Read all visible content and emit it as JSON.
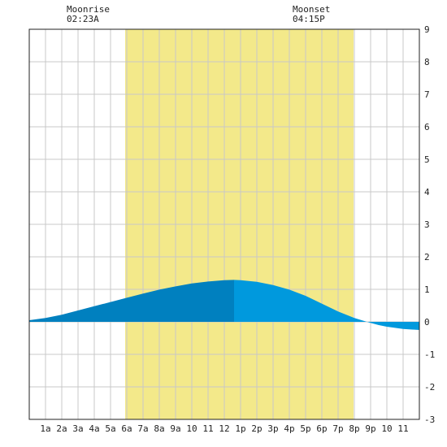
{
  "moonrise": {
    "label": "Moonrise",
    "time": "02:23A"
  },
  "moonset": {
    "label": "Moonset",
    "time": "04:15P"
  },
  "colors": {
    "daylight": "#f3e98a",
    "grid": "#c8c8c8",
    "tide_dark": "#0080bf",
    "tide_light": "#0099dd",
    "axis": "#222222"
  },
  "chart_data": {
    "type": "area",
    "x_unit": "hour of day",
    "y_unit": "ft",
    "xlim": [
      0,
      24
    ],
    "ylim": [
      -3,
      9
    ],
    "y_ticks": [
      -3,
      -2,
      -1,
      0,
      1,
      2,
      3,
      4,
      5,
      6,
      7,
      8,
      9
    ],
    "x_ticks": [
      {
        "x": 1,
        "label": "1a"
      },
      {
        "x": 2,
        "label": "2a"
      },
      {
        "x": 3,
        "label": "3a"
      },
      {
        "x": 4,
        "label": "4a"
      },
      {
        "x": 5,
        "label": "5a"
      },
      {
        "x": 6,
        "label": "6a"
      },
      {
        "x": 7,
        "label": "7a"
      },
      {
        "x": 8,
        "label": "8a"
      },
      {
        "x": 9,
        "label": "9a"
      },
      {
        "x": 10,
        "label": "10"
      },
      {
        "x": 11,
        "label": "11"
      },
      {
        "x": 12,
        "label": "12"
      },
      {
        "x": 13,
        "label": "1p"
      },
      {
        "x": 14,
        "label": "2p"
      },
      {
        "x": 15,
        "label": "3p"
      },
      {
        "x": 16,
        "label": "4p"
      },
      {
        "x": 17,
        "label": "5p"
      },
      {
        "x": 18,
        "label": "6p"
      },
      {
        "x": 19,
        "label": "7p"
      },
      {
        "x": 20,
        "label": "8p"
      },
      {
        "x": 21,
        "label": "9p"
      },
      {
        "x": 22,
        "label": "10"
      },
      {
        "x": 23,
        "label": "11"
      }
    ],
    "daylight": {
      "start": 5.9,
      "end": 19.95
    },
    "moonrise_hour": 2.38,
    "moonset_hour": 16.25,
    "split_hour": 12.6,
    "series": [
      {
        "values": [
          [
            0,
            0.05
          ],
          [
            1,
            0.12
          ],
          [
            2,
            0.22
          ],
          [
            3,
            0.35
          ],
          [
            4,
            0.48
          ],
          [
            5,
            0.61
          ],
          [
            6,
            0.74
          ],
          [
            7,
            0.87
          ],
          [
            8,
            0.99
          ],
          [
            9,
            1.09
          ],
          [
            10,
            1.18
          ],
          [
            11,
            1.24
          ],
          [
            12,
            1.28
          ],
          [
            12.6,
            1.29
          ],
          [
            13,
            1.28
          ],
          [
            14,
            1.23
          ],
          [
            15,
            1.13
          ],
          [
            16,
            0.99
          ],
          [
            17,
            0.8
          ],
          [
            18,
            0.56
          ],
          [
            19,
            0.32
          ],
          [
            20,
            0.12
          ],
          [
            20.9,
            -0.02
          ],
          [
            21.5,
            -0.1
          ],
          [
            22,
            -0.15
          ],
          [
            23,
            -0.22
          ],
          [
            24,
            -0.25
          ]
        ]
      }
    ]
  }
}
